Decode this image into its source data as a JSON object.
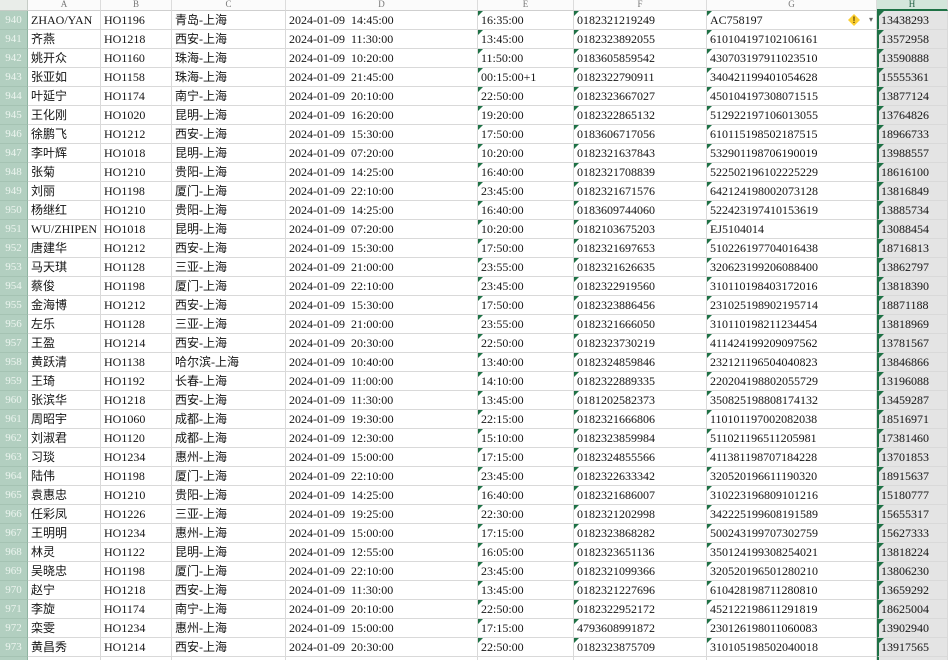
{
  "sheet": {
    "corner_label": "",
    "column_headers": [
      "A",
      "B",
      "C",
      "D",
      "E",
      "F",
      "G",
      "H"
    ],
    "selected_column": "H",
    "colors": {
      "selection_green": "#1e7145",
      "row_header_bg": "#b2cfc0",
      "selected_column_fill": "#e4e4e4",
      "warning_yellow": "#fccf31",
      "error_triangle_green": "#1e7145",
      "gridline": "#d9d9d9"
    },
    "error_button": {
      "symbol": "!",
      "dropdown": "▾"
    }
  },
  "rows": [
    {
      "num": "940",
      "name": "ZHAO/YAN",
      "flight": "HO1196",
      "route": "青岛-上海",
      "depart": "2024-01-09  14:45:00",
      "arrive": "16:35:00",
      "ticket": "0182321219249",
      "id_no": "AC758197",
      "phone": "13438293",
      "warning": true
    },
    {
      "num": "941",
      "name": "齐燕",
      "flight": "HO1218",
      "route": "西安-上海",
      "depart": "2024-01-09  11:30:00",
      "arrive": "13:45:00",
      "ticket": "0182323892055",
      "id_no": "610104197102106161",
      "phone": "13572958"
    },
    {
      "num": "942",
      "name": "姚开众",
      "flight": "HO1160",
      "route": "珠海-上海",
      "depart": "2024-01-09  10:20:00",
      "arrive": "11:50:00",
      "ticket": "0183605859542",
      "id_no": "430703197911023510",
      "phone": "13590888"
    },
    {
      "num": "943",
      "name": "张亚如",
      "flight": "HO1158",
      "route": "珠海-上海",
      "depart": "2024-01-09  21:45:00",
      "arrive": "00:15:00+1",
      "ticket": "0182322790911",
      "id_no": "340421199401054628",
      "phone": "15555361"
    },
    {
      "num": "944",
      "name": "叶延宁",
      "flight": "HO1174",
      "route": "南宁-上海",
      "depart": "2024-01-09  20:10:00",
      "arrive": "22:50:00",
      "ticket": "0182323667027",
      "id_no": "450104197308071515",
      "phone": "13877124"
    },
    {
      "num": "945",
      "name": "王化刚",
      "flight": "HO1020",
      "route": "昆明-上海",
      "depart": "2024-01-09  16:20:00",
      "arrive": "19:20:00",
      "ticket": "0182322865132",
      "id_no": "512922197106013055",
      "phone": "13764826"
    },
    {
      "num": "946",
      "name": "徐鹏飞",
      "flight": "HO1212",
      "route": "西安-上海",
      "depart": "2024-01-09  15:30:00",
      "arrive": "17:50:00",
      "ticket": "0183606717056",
      "id_no": "610115198502187515",
      "phone": "18966733"
    },
    {
      "num": "947",
      "name": "李叶辉",
      "flight": "HO1018",
      "route": "昆明-上海",
      "depart": "2024-01-09  07:20:00",
      "arrive": "10:20:00",
      "ticket": "0182321637843",
      "id_no": "532901198706190019",
      "phone": "13988557"
    },
    {
      "num": "948",
      "name": "张菊",
      "flight": "HO1210",
      "route": "贵阳-上海",
      "depart": "2024-01-09  14:25:00",
      "arrive": "16:40:00",
      "ticket": "0182321708839",
      "id_no": "522502196102225229",
      "phone": "18616100"
    },
    {
      "num": "949",
      "name": "刘丽",
      "flight": "HO1198",
      "route": "厦门-上海",
      "depart": "2024-01-09  22:10:00",
      "arrive": "23:45:00",
      "ticket": "0182321671576",
      "id_no": "642124198002073128",
      "phone": "13816849"
    },
    {
      "num": "950",
      "name": "杨继红",
      "flight": "HO1210",
      "route": "贵阳-上海",
      "depart": "2024-01-09  14:25:00",
      "arrive": "16:40:00",
      "ticket": "0183609744060",
      "id_no": "522423197410153619",
      "phone": "13885734"
    },
    {
      "num": "951",
      "name": "WU/ZHIPEN",
      "flight": "HO1018",
      "route": "昆明-上海",
      "depart": "2024-01-09  07:20:00",
      "arrive": "10:20:00",
      "ticket": "0182103675203",
      "id_no": "EJ5104014",
      "phone": "13088454"
    },
    {
      "num": "952",
      "name": "唐建华",
      "flight": "HO1212",
      "route": "西安-上海",
      "depart": "2024-01-09  15:30:00",
      "arrive": "17:50:00",
      "ticket": "0182321697653",
      "id_no": "510226197704016438",
      "phone": "18716813"
    },
    {
      "num": "953",
      "name": "马天琪",
      "flight": "HO1128",
      "route": "三亚-上海",
      "depart": "2024-01-09  21:00:00",
      "arrive": "23:55:00",
      "ticket": "0182321626635",
      "id_no": "320623199206088400",
      "phone": "13862797"
    },
    {
      "num": "954",
      "name": "蔡俊",
      "flight": "HO1198",
      "route": "厦门-上海",
      "depart": "2024-01-09  22:10:00",
      "arrive": "23:45:00",
      "ticket": "0182322919560",
      "id_no": "310110198403172016",
      "phone": "13818390"
    },
    {
      "num": "955",
      "name": "金海博",
      "flight": "HO1212",
      "route": "西安-上海",
      "depart": "2024-01-09  15:30:00",
      "arrive": "17:50:00",
      "ticket": "0182323886456",
      "id_no": "231025198902195714",
      "phone": "18871188"
    },
    {
      "num": "956",
      "name": "左乐",
      "flight": "HO1128",
      "route": "三亚-上海",
      "depart": "2024-01-09  21:00:00",
      "arrive": "23:55:00",
      "ticket": "0182321666050",
      "id_no": "310110198211234454",
      "phone": "13818969"
    },
    {
      "num": "957",
      "name": "王盈",
      "flight": "HO1214",
      "route": "西安-上海",
      "depart": "2024-01-09  20:30:00",
      "arrive": "22:50:00",
      "ticket": "0182323730219",
      "id_no": "411424199209097562",
      "phone": "13781567"
    },
    {
      "num": "958",
      "name": "黄跃清",
      "flight": "HO1138",
      "route": "哈尔滨-上海",
      "depart": "2024-01-09  10:40:00",
      "arrive": "13:40:00",
      "ticket": "0182324859846",
      "id_no": "232121196504040823",
      "phone": "13846866"
    },
    {
      "num": "959",
      "name": "王琦",
      "flight": "HO1192",
      "route": "长春-上海",
      "depart": "2024-01-09  11:00:00",
      "arrive": "14:10:00",
      "ticket": "0182322889335",
      "id_no": "220204198802055729",
      "phone": "13196088"
    },
    {
      "num": "960",
      "name": "张滨华",
      "flight": "HO1218",
      "route": "西安-上海",
      "depart": "2024-01-09  11:30:00",
      "arrive": "13:45:00",
      "ticket": "0181202582373",
      "id_no": "350825198808174132",
      "phone": "13459287"
    },
    {
      "num": "961",
      "name": "周昭宇",
      "flight": "HO1060",
      "route": "成都-上海",
      "depart": "2024-01-09  19:30:00",
      "arrive": "22:15:00",
      "ticket": "0182321666806",
      "id_no": "110101197002082038",
      "phone": "18516971"
    },
    {
      "num": "962",
      "name": "刘淑君",
      "flight": "HO1120",
      "route": "成都-上海",
      "depart": "2024-01-09  12:30:00",
      "arrive": "15:10:00",
      "ticket": "0182323859984",
      "id_no": "511021196511205981",
      "phone": "17381460"
    },
    {
      "num": "963",
      "name": "习琰",
      "flight": "HO1234",
      "route": "惠州-上海",
      "depart": "2024-01-09  15:00:00",
      "arrive": "17:15:00",
      "ticket": "0182324855566",
      "id_no": "411381198707184228",
      "phone": "13701853"
    },
    {
      "num": "964",
      "name": "陆伟",
      "flight": "HO1198",
      "route": "厦门-上海",
      "depart": "2024-01-09  22:10:00",
      "arrive": "23:45:00",
      "ticket": "0182322633342",
      "id_no": "320520196611190320",
      "phone": "18915637"
    },
    {
      "num": "965",
      "name": "袁惠忠",
      "flight": "HO1210",
      "route": "贵阳-上海",
      "depart": "2024-01-09  14:25:00",
      "arrive": "16:40:00",
      "ticket": "0182321686007",
      "id_no": "310223196809101216",
      "phone": "15180777"
    },
    {
      "num": "966",
      "name": "任彩凤",
      "flight": "HO1226",
      "route": "三亚-上海",
      "depart": "2024-01-09  19:25:00",
      "arrive": "22:30:00",
      "ticket": "0182321202998",
      "id_no": "342225199608191589",
      "phone": "15655317"
    },
    {
      "num": "967",
      "name": "王明明",
      "flight": "HO1234",
      "route": "惠州-上海",
      "depart": "2024-01-09  15:00:00",
      "arrive": "17:15:00",
      "ticket": "0182323868282",
      "id_no": "500243199707302759",
      "phone": "15627333"
    },
    {
      "num": "968",
      "name": "林灵",
      "flight": "HO1122",
      "route": "昆明-上海",
      "depart": "2024-01-09  12:55:00",
      "arrive": "16:05:00",
      "ticket": "0182323651136",
      "id_no": "350124199308254021",
      "phone": "13818224"
    },
    {
      "num": "969",
      "name": "吴晓忠",
      "flight": "HO1198",
      "route": "厦门-上海",
      "depart": "2024-01-09  22:10:00",
      "arrive": "23:45:00",
      "ticket": "0182321099366",
      "id_no": "320520196501280210",
      "phone": "13806230"
    },
    {
      "num": "970",
      "name": "赵宁",
      "flight": "HO1218",
      "route": "西安-上海",
      "depart": "2024-01-09  11:30:00",
      "arrive": "13:45:00",
      "ticket": "0182321227696",
      "id_no": "610428198711280810",
      "phone": "13659292"
    },
    {
      "num": "971",
      "name": "李旋",
      "flight": "HO1174",
      "route": "南宁-上海",
      "depart": "2024-01-09  20:10:00",
      "arrive": "22:50:00",
      "ticket": "0182322952172",
      "id_no": "452122198611291819",
      "phone": "18625004"
    },
    {
      "num": "972",
      "name": "栾雯",
      "flight": "HO1234",
      "route": "惠州-上海",
      "depart": "2024-01-09  15:00:00",
      "arrive": "17:15:00",
      "ticket": "4793608991872",
      "id_no": "230126198011060083",
      "phone": "13902940"
    },
    {
      "num": "973",
      "name": "黄昌秀",
      "flight": "HO1214",
      "route": "西安-上海",
      "depart": "2024-01-09  20:30:00",
      "arrive": "22:50:00",
      "ticket": "0182323875709",
      "id_no": "310105198502040018",
      "phone": "13917565"
    },
    {
      "num": "974",
      "name": "",
      "flight": "",
      "route": "",
      "depart": "",
      "arrive": "",
      "ticket": "",
      "id_no": "",
      "phone": "",
      "partial": true
    }
  ]
}
